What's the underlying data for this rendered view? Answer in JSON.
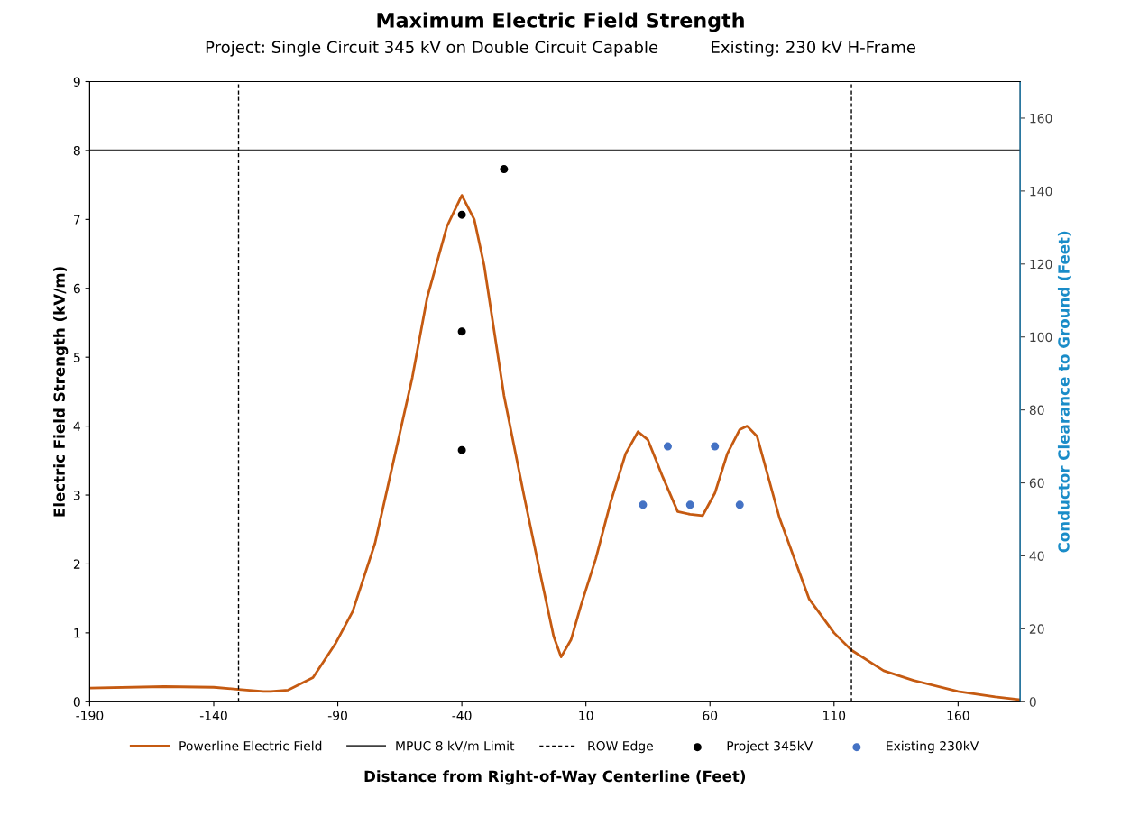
{
  "chart_data": {
    "type": "line",
    "title": "Maximum Electric Field Strength",
    "subtitle": "Project: Single Circuit 345 kV on Double Circuit Capable          Existing: 230 kV H-Frame",
    "xlabel": "Distance from Right-of-Way Centerline (Feet)",
    "ylabel": "Electric Field Strength (kV/m)",
    "y2label": "Conductor Clearance to Ground (Feet)",
    "xlim": [
      -190,
      185
    ],
    "xticks": [
      -190,
      -140,
      -90,
      -40,
      10,
      60,
      110,
      160
    ],
    "ylim": [
      0,
      9
    ],
    "yticks": [
      0,
      1,
      2,
      3,
      4,
      5,
      6,
      7,
      8,
      9
    ],
    "y2lim": [
      0,
      170
    ],
    "y2ticks": [
      0,
      20,
      40,
      60,
      80,
      100,
      120,
      140,
      160
    ],
    "series": [
      {
        "name": "Powerline Electric Field",
        "color": "#c55a11",
        "x": [
          -190,
          -160,
          -140,
          -130,
          -120,
          -117,
          -110,
          -100,
          -91,
          -84,
          -75,
          -69,
          -60,
          -54,
          -46,
          -40,
          -35,
          -31,
          -23,
          -15,
          -8,
          -3,
          0,
          4,
          8,
          14,
          20,
          26,
          31,
          35,
          41,
          47,
          52,
          57,
          62,
          67,
          72,
          75,
          79,
          88,
          100,
          110,
          117,
          130,
          142,
          160,
          175,
          185
        ],
        "values": [
          0.2,
          0.22,
          0.21,
          0.18,
          0.15,
          0.15,
          0.17,
          0.35,
          0.84,
          1.31,
          2.3,
          3.26,
          4.7,
          5.86,
          6.9,
          7.35,
          7.0,
          6.33,
          4.44,
          3.0,
          1.79,
          0.95,
          0.65,
          0.9,
          1.4,
          2.08,
          2.9,
          3.6,
          3.92,
          3.8,
          3.26,
          2.76,
          2.72,
          2.7,
          3.03,
          3.6,
          3.95,
          4.0,
          3.85,
          2.67,
          1.49,
          1.0,
          0.75,
          0.45,
          0.31,
          0.15,
          0.07,
          0.03
        ]
      },
      {
        "name": "Project 345kV",
        "type": "scatter",
        "axis": "y2",
        "color": "#000000",
        "marker": "circle",
        "x": [
          -40,
          -40,
          -40,
          -23
        ],
        "values": [
          133.5,
          101.5,
          69,
          146
        ]
      },
      {
        "name": "Existing 230kV",
        "type": "scatter",
        "axis": "y2",
        "color": "#4472c4",
        "marker": "circle",
        "x": [
          33,
          43,
          52,
          62,
          72
        ],
        "values": [
          54,
          70,
          54,
          70,
          54
        ]
      }
    ],
    "ref_lines": [
      {
        "axis": "y",
        "value": 8,
        "label": "MPUC 8 kV/m Limit",
        "color": "#404040",
        "line_style": "solid"
      },
      {
        "axis": "x",
        "value": -130,
        "label": "ROW Edge",
        "color": "#000000",
        "line_style": "dashed"
      },
      {
        "axis": "x",
        "value": 117,
        "label": null,
        "color": "#000000",
        "line_style": "dashed"
      }
    ],
    "grid": false,
    "legend": "bottom"
  }
}
